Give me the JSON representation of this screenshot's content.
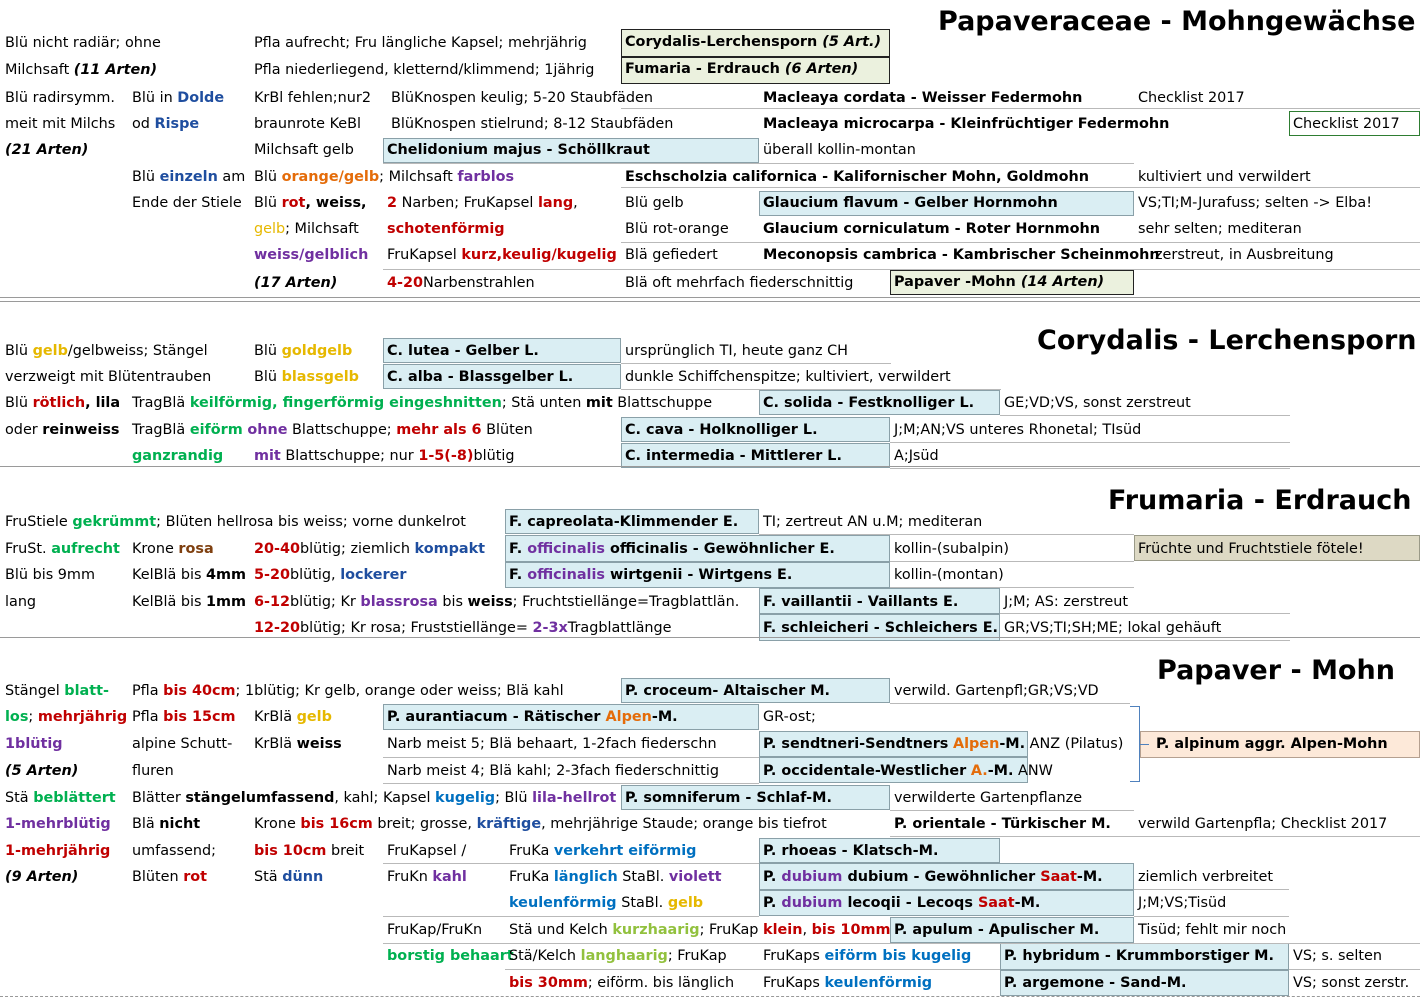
{
  "headings": {
    "h1": "Papaveraceae - Mohngewächse",
    "h2": "Corydalis - Lerchensporn",
    "h3": "Frumaria - Erdrauch",
    "h4": "Papaver - Mohn"
  },
  "colors": {
    "blue_box": "#daeef3",
    "green_box": "#ebf1de",
    "tan_box": "#ddd9c4",
    "peach_box": "#fde9d9"
  },
  "s1": {
    "r1": {
      "a": "Blü nicht radiär; ohne",
      "b": "Pfla aufrecht; Fru längliche Kapsel; mehrjährig",
      "box1": "Corydalis-Lerchensporn",
      "box2": "(5 Art.)"
    },
    "r2": {
      "a1": "Milchsaft",
      "a2": "(11 Arten)",
      "b": "Pfla niederliegend, kletternd/klimmend; 1jährig",
      "box1": "Fumaria - Erdrauch",
      "box2": "(6 Arten)"
    },
    "r3": {
      "a": "Blü radirsymm.",
      "b1": "Blü in",
      "b2": "Dolde",
      "c": "KrBl fehlen;nur2",
      "d": "BlüKnospen keulig; 5-20 Staubfäden",
      "e": "Macleaya cordata - Weisser Federmohn",
      "f": "Checklist 2017"
    },
    "r4": {
      "a": "meit mit Milchs",
      "b1": "od",
      "b2": "Rispe",
      "c": "braunrote KeBl",
      "d": "BlüKnospen stielrund; 8-12 Staubfäden",
      "e": "Macleaya microcarpa - Kleinfrüchtiger Federmohn",
      "f": "Checklist 2017"
    },
    "r5": {
      "a": "(21 Arten)",
      "c": "Milchsaft gelb",
      "d": "Chelidonium majus - Schöllkraut",
      "e": "überall kollin-montan"
    },
    "r6": {
      "b1": "Blü",
      "b2": "einzeln",
      "b3": "am",
      "c1": "Blü",
      "c2": "orange/gelb",
      "c3": "; Milchsaft",
      "c4": "farblos",
      "e": "Eschscholzia californica - Kalifornischer Mohn, Goldmohn",
      "f": "kultiviert und verwildert"
    },
    "r7": {
      "b": "Ende der Stiele",
      "c1": "Blü",
      "c2": "rot",
      "c3": ", weiss,",
      "d1": "2",
      "d2": "Narben; FruKapsel",
      "d3": "lang",
      "d4": ",",
      "e": "Blü gelb",
      "f": "Glaucium flavum - Gelber Hornmohn",
      "g": "VS;TI;M-Jurafuss; selten -> Elba!"
    },
    "r8": {
      "c1": "gelb",
      "c2": "; Milchsaft",
      "d": "schotenförmig",
      "e": "Blü rot-orange",
      "f": "Glaucium corniculatum - Roter Hornmohn",
      "g": "sehr selten; mediteran"
    },
    "r9": {
      "c": "weiss/gelblich",
      "d1": "FruKapsel",
      "d2": "kurz,keulig/kugelig",
      "e": "Blä gefiedert",
      "f": "Meconopsis cambrica - Kambrischer Scheinmohn",
      "g": "zerstreut, in Ausbreitung"
    },
    "r10": {
      "c": "(17 Arten)",
      "d1": "4-20",
      "d2": "Narbenstrahlen",
      "e": "Blä oft mehrfach fiederschnittig",
      "box1": "Papaver -Mohn",
      "box2": "(14 Arten)"
    }
  },
  "s2": {
    "r1": {
      "a1": "Blü",
      "a2": "gelb",
      "a3": "/gelbweiss; Stängel",
      "c1": "Blü",
      "c2": "goldgelb",
      "d": "C. lutea - Gelber L.",
      "e": "ursprünglich TI, heute ganz CH"
    },
    "r2": {
      "a": "verzweigt mit Blütentrauben",
      "c1": "Blü",
      "c2": "blassgelb",
      "d": "C. alba - Blassgelber L.",
      "e": "dunkle Schiffchenspitze; kultiviert, verwildert"
    },
    "r3": {
      "a1": "Blü",
      "a2": "rötlich",
      "a3": ", lila",
      "b1": "TragBlä",
      "b2": "keilförmig, fingerförmig eingeshnitten",
      "b3": "; Stä unten",
      "b4": "mit",
      "b5": "Blattschuppe",
      "d": "C. solida - Festknolliger L.",
      "e": "GE;VD;VS, sonst zerstreut"
    },
    "r4": {
      "a1": "oder",
      "a2": "reinweiss",
      "b1": "TragBlä",
      "b2": "eiförm",
      "b3": "ohne",
      "b4": "Blattschuppe;",
      "b5": "mehr als 6",
      "b6": "Blüten",
      "d": "C. cava - Holknolliger L.",
      "e": "J;M;AN;VS unteres Rhonetal; TIsüd"
    },
    "r5": {
      "b": "ganzrandig",
      "c1": "mit",
      "c2": "Blattschuppe; nur",
      "c3": "1-5(-8)",
      "c4": "blütig",
      "d": "C. intermedia - Mittlerer L.",
      "e": "A;Jsüd"
    }
  },
  "s3": {
    "r1": {
      "a1": "FruStiele",
      "a2": "gekrümmt",
      "a3": "; Blüten hellrosa bis weiss; vorne dunkelrot",
      "d": "F. capreolata-Klimmender E.",
      "e": "TI; zertreut AN u.M; mediteran"
    },
    "r2": {
      "a1": "FruSt.",
      "a2": "aufrecht",
      "b1": "Krone",
      "b2": "rosa",
      "c1": "20-40",
      "c2": "blütig; ziemlich",
      "c3": "kompakt",
      "d1": "F.",
      "d2": "officinalis",
      "d3": "officinalis - Gewöhnlicher E.",
      "e": "kollin-(subalpin)",
      "f": "Früchte und Fruchtstiele fötele!"
    },
    "r3": {
      "a": "Blü bis 9mm",
      "b1": "KelBlä bis",
      "b2": "4mm",
      "c1": "5-20",
      "c2": "blütig,",
      "c3": "lockerer",
      "d1": "F.",
      "d2": "officinalis",
      "d3": "wirtgenii - Wirtgens E.",
      "e": "kollin-(montan)"
    },
    "r4": {
      "a": "lang",
      "b1": "KelBlä bis",
      "b2": "1mm",
      "c1": "6-12",
      "c2": "blütig; Kr",
      "c3": "blassrosa",
      "c4": "bis",
      "c5": "weiss",
      "c6": "; Fruchtstiellänge=Tragblattlän.",
      "d": "F. vaillantii - Vaillants E.",
      "e": "J;M; AS: zerstreut"
    },
    "r5": {
      "c1": "12-20",
      "c2": "blütig; Kr rosa; Fruststiellänge=",
      "c3": "2-3x",
      "c4": "Tragblattlänge",
      "d": "F. schleicheri - Schleichers E.",
      "e": "GR;VS;TI;SH;ME; lokal gehäuft"
    }
  },
  "s4": {
    "r1": {
      "a1": "Stängel",
      "a2": "blatt-",
      "b1": "Pfla",
      "b2": "bis 40cm",
      "b3": "; 1blütig; Kr gelb, orange oder weiss; Blä kahl",
      "d": "P. croceum- Altaischer M.",
      "e": "verwild. Gartenpfl;GR;VS;VD"
    },
    "r2": {
      "a1": "los",
      "a2": ";",
      "a3": "mehrjährig",
      "b1": "Pfla",
      "b2": "bis 15cm",
      "c1": "KrBlä",
      "c2": "gelb",
      "d1": "P. aurantiacum - Rätischer",
      "d2": "Alpen",
      "d3": "-M.",
      "e": "GR-ost;"
    },
    "r3": {
      "a": "1blütig",
      "b": "alpine Schutt-",
      "c1": "KrBlä",
      "c2": "weiss",
      "d": "Narb meist 5; Blä behaart, 1-2fach fiederschn",
      "e1": "P. sendtneri-Sendtners",
      "e2": "Alpen",
      "e3": "-M.",
      "e4": "ANZ (Pilatus)",
      "f": "P. alpinum aggr. Alpen-Mohn"
    },
    "r4": {
      "a": "(5 Arten)",
      "b": "fluren",
      "d": "Narb meist 4; Blä kahl; 2-3fach fiederschnittig",
      "e1": "P. occidentale-Westlicher",
      "e2": "A.",
      "e3": "-M.",
      "e4": "ANW"
    },
    "r5": {
      "a1": "Stä",
      "a2": "beblättert",
      "b1": "Blätter",
      "b2": "stängelumfassend",
      "b3": ", kahl; Kapsel",
      "b4": "kugelig",
      "b5": "; Blü",
      "b6": "lila-hellrot",
      "d": "P. somniferum - Schlaf-M.",
      "e": "verwilderte Gartenpflanze"
    },
    "r6": {
      "a": "1-mehrblütig",
      "b1": "Blä",
      "b2": "nicht",
      "c1": "Krone",
      "c2": "bis 16cm",
      "c3": "breit; grosse,",
      "c4": "kräftige",
      "c5": ", mehrjährige Staude; orange bis tiefrot",
      "d": "P. orientale - Türkischer M.",
      "e": "verwild Gartenpfla; Checklist 2017"
    },
    "r7": {
      "a": "1-mehrjährig",
      "b": "umfassend;",
      "c1": "bis 10cm",
      "c2": "breit",
      "d": "FruKapsel /",
      "e1": "FruKa",
      "e2": "verkehrt eiförmig",
      "f": "P. rhoeas - Klatsch-M."
    },
    "r8": {
      "a": "(9 Arten)",
      "b1": "Blüten",
      "b2": "rot",
      "c1": "Stä",
      "c2": "dünn",
      "d1": "FruKn",
      "d2": "kahl",
      "e1": "FruKa",
      "e2": "länglich",
      "e3": "StaBl.",
      "e4": "violett",
      "f1": "P.",
      "f2": "dubium",
      "f3": "dubium - Gewöhnlicher",
      "f4": "Saat",
      "f5": "-M.",
      "g": "ziemlich verbreitet"
    },
    "r9": {
      "e1": "keulenförmig",
      "e2": "StaBl.",
      "e3": "gelb",
      "f1": "P.",
      "f2": "dubium",
      "f3": "lecoqii - Lecoqs",
      "f4": "Saat",
      "f5": "-M.",
      "g": "J;M;VS;Tisüd"
    },
    "r10": {
      "d": "FruKap/FruKn",
      "e1": "Stä und Kelch",
      "e2": "kurzhaarig",
      "e3": "; FruKap",
      "e4": "klein",
      "e5": ",",
      "e6": "bis 10mm",
      "f": "P. apulum - Apulischer M.",
      "g": "Tisüd;  fehlt mir noch"
    },
    "r11": {
      "d": "borstig behaart",
      "e1": "Stä/Kelch",
      "e2": "langhaarig",
      "e3": "; FruKap",
      "f1": "FruKaps",
      "f2": "eiförm bis kugelig",
      "g": "P. hybridum - Krummborstiger M.",
      "h": "VS; s. selten"
    },
    "r12": {
      "e1": "bis 30mm",
      "e2": "; eiförm. bis länglich",
      "f1": "FruKaps",
      "f2": "keulenförmig",
      "g": "P. argemone - Sand-M.",
      "h": "VS; sonst zerstr."
    }
  }
}
